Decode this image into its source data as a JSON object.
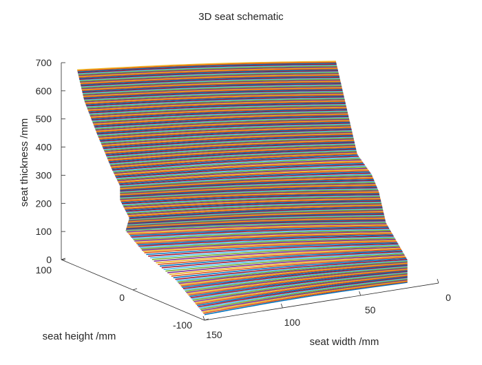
{
  "chart_data": {
    "type": "surface3d",
    "title": "3D seat schematic",
    "xlabel": "seat width  /mm",
    "ylabel": "seat height  /mm",
    "zlabel": "seat thickness  /mm",
    "x_ticks": [
      0,
      50,
      100,
      150
    ],
    "y_ticks": [
      100,
      0,
      -100
    ],
    "z_ticks": [
      0,
      100,
      200,
      300,
      400,
      500,
      600,
      700
    ],
    "xlim": [
      0,
      150
    ],
    "ylim": [
      -100,
      100
    ],
    "zlim": [
      0,
      700
    ],
    "grid": false,
    "colors": [
      "#0072bd",
      "#d95319",
      "#edb120",
      "#7e2f8e",
      "#77ac30",
      "#4dbeee",
      "#a2142f"
    ],
    "profile": [
      {
        "z": 20,
        "y_near": -100,
        "y_far": -100
      },
      {
        "z": 100,
        "y_near": -60,
        "y_far": -100
      },
      {
        "z": 150,
        "y_near": -15,
        "y_far": -85
      },
      {
        "z": 200,
        "y_near": 10,
        "y_far": -70
      },
      {
        "z": 250,
        "y_near": 5,
        "y_far": -65
      },
      {
        "z": 300,
        "y_near": 18,
        "y_far": -60
      },
      {
        "z": 350,
        "y_near": 18,
        "y_far": -50
      },
      {
        "z": 400,
        "y_near": 30,
        "y_far": -30
      },
      {
        "z": 500,
        "y_near": 50,
        "y_far": -20
      },
      {
        "z": 600,
        "y_near": 68,
        "y_far": -10
      },
      {
        "z": 700,
        "y_near": 78,
        "y_far": 0
      }
    ],
    "width_range": [
      20,
      150
    ]
  }
}
